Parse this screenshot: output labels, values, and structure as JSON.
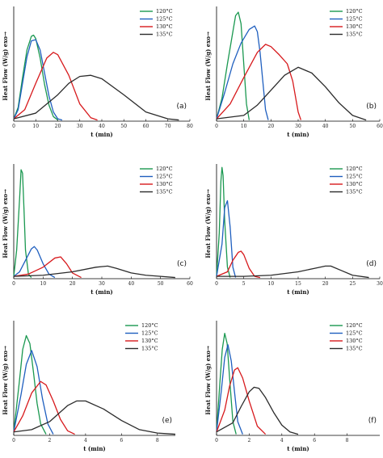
{
  "colors": {
    "120°C": "#1a9850",
    "125°C": "#1f5fbf",
    "130°C": "#d7191c",
    "135°C": "#2b2b2b"
  },
  "chart_data": [
    {
      "type": "line",
      "panel": "(a)",
      "xlabel": "t (min)",
      "ylabel": "Heat Flow (W/g) exo→",
      "xlim": [
        0,
        80
      ],
      "ylim": [
        0,
        1
      ],
      "xticks": [
        0,
        10,
        20,
        30,
        40,
        50,
        60,
        70,
        80
      ],
      "legend": "top-right",
      "series": [
        {
          "name": "120°C",
          "x": [
            0,
            2,
            4,
            6,
            8,
            9,
            10,
            12,
            14,
            16,
            18,
            20
          ],
          "y": [
            0.02,
            0.12,
            0.38,
            0.62,
            0.74,
            0.75,
            0.72,
            0.55,
            0.32,
            0.14,
            0.04,
            0.01
          ]
        },
        {
          "name": "125°C",
          "x": [
            0,
            2,
            4,
            6,
            8,
            10,
            12,
            14,
            16,
            18,
            20,
            22
          ],
          "y": [
            0.02,
            0.1,
            0.33,
            0.56,
            0.7,
            0.71,
            0.62,
            0.42,
            0.22,
            0.08,
            0.02,
            0.01
          ]
        },
        {
          "name": "130°C",
          "x": [
            0,
            5,
            10,
            15,
            18,
            20,
            25,
            30,
            35,
            38
          ],
          "y": [
            0.02,
            0.1,
            0.33,
            0.55,
            0.6,
            0.58,
            0.4,
            0.15,
            0.03,
            0.01
          ]
        },
        {
          "name": "135°C",
          "x": [
            0,
            10,
            20,
            25,
            30,
            35,
            40,
            50,
            60,
            70,
            75
          ],
          "y": [
            0.02,
            0.07,
            0.23,
            0.33,
            0.39,
            0.4,
            0.37,
            0.23,
            0.08,
            0.02,
            0.01
          ]
        }
      ]
    },
    {
      "type": "line",
      "panel": "(b)",
      "xlabel": "t (min)",
      "ylabel": "Heat Flow (W/g) exo→",
      "xlim": [
        0,
        60
      ],
      "ylim": [
        0,
        1
      ],
      "xticks": [
        0,
        10,
        20,
        30,
        40,
        50,
        60
      ],
      "legend": "top-right",
      "series": [
        {
          "name": "120°C",
          "x": [
            0,
            2,
            4,
            6,
            7,
            8,
            9,
            10,
            11,
            12
          ],
          "y": [
            0.02,
            0.2,
            0.5,
            0.78,
            0.92,
            0.95,
            0.85,
            0.5,
            0.15,
            0.01
          ]
        },
        {
          "name": "125°C",
          "x": [
            0,
            3,
            6,
            9,
            12,
            14,
            15,
            16,
            17,
            18,
            19
          ],
          "y": [
            0.02,
            0.25,
            0.5,
            0.68,
            0.8,
            0.83,
            0.78,
            0.6,
            0.35,
            0.1,
            0.01
          ]
        },
        {
          "name": "130°C",
          "x": [
            0,
            5,
            10,
            15,
            18,
            20,
            23,
            26,
            28,
            30,
            31
          ],
          "y": [
            0.02,
            0.15,
            0.38,
            0.6,
            0.67,
            0.65,
            0.58,
            0.5,
            0.35,
            0.08,
            0.01
          ]
        },
        {
          "name": "135°C",
          "x": [
            0,
            10,
            15,
            20,
            25,
            30,
            35,
            40,
            45,
            50,
            55
          ],
          "y": [
            0.02,
            0.05,
            0.14,
            0.27,
            0.4,
            0.47,
            0.42,
            0.3,
            0.16,
            0.05,
            0.01
          ]
        }
      ]
    },
    {
      "type": "line",
      "panel": "(c)",
      "xlabel": "t (min)",
      "ylabel": "Heat Flow (W/g) exo→",
      "xlim": [
        0,
        60
      ],
      "ylim": [
        0,
        1
      ],
      "xticks": [
        0,
        10,
        20,
        30,
        40,
        50,
        60
      ],
      "legend": "top-right",
      "series": [
        {
          "name": "120°C",
          "x": [
            0,
            1,
            2,
            2.5,
            3,
            3.5,
            4,
            5,
            6
          ],
          "y": [
            0.02,
            0.25,
            0.7,
            0.95,
            0.92,
            0.6,
            0.25,
            0.04,
            0.01
          ]
        },
        {
          "name": "125°C",
          "x": [
            0,
            2,
            4,
            6,
            7,
            8,
            10,
            12,
            14
          ],
          "y": [
            0.02,
            0.06,
            0.16,
            0.26,
            0.28,
            0.25,
            0.13,
            0.04,
            0.01
          ]
        },
        {
          "name": "130°C",
          "x": [
            0,
            5,
            10,
            14,
            16,
            18,
            20,
            23
          ],
          "y": [
            0.02,
            0.04,
            0.1,
            0.18,
            0.19,
            0.13,
            0.05,
            0.01
          ]
        },
        {
          "name": "135°C",
          "x": [
            0,
            10,
            20,
            28,
            32,
            35,
            40,
            45,
            50,
            55
          ],
          "y": [
            0.02,
            0.03,
            0.06,
            0.1,
            0.11,
            0.09,
            0.05,
            0.03,
            0.02,
            0.01
          ]
        }
      ]
    },
    {
      "type": "line",
      "panel": "(d)",
      "xlabel": "t (min)",
      "ylabel": "Heat Flow (W/g) exo→",
      "xlim": [
        0,
        30
      ],
      "ylim": [
        0,
        1
      ],
      "xticks": [
        0,
        5,
        10,
        15,
        20,
        25,
        30
      ],
      "legend": "top-right",
      "series": [
        {
          "name": "120°C",
          "x": [
            0,
            0.5,
            0.8,
            1,
            1.2,
            1.5,
            2,
            2.5
          ],
          "y": [
            0.02,
            0.4,
            0.85,
            0.97,
            0.9,
            0.5,
            0.1,
            0.01
          ]
        },
        {
          "name": "125°C",
          "x": [
            0,
            1,
            1.5,
            2,
            2.5,
            3,
            3.5
          ],
          "y": [
            0.02,
            0.3,
            0.62,
            0.68,
            0.45,
            0.1,
            0.01
          ]
        },
        {
          "name": "130°C",
          "x": [
            0,
            2,
            3,
            4,
            4.5,
            5,
            6,
            7,
            8
          ],
          "y": [
            0.02,
            0.06,
            0.16,
            0.23,
            0.24,
            0.21,
            0.09,
            0.02,
            0.01
          ]
        },
        {
          "name": "135°C",
          "x": [
            0,
            5,
            10,
            15,
            18,
            20,
            21,
            23,
            25,
            28
          ],
          "y": [
            0.02,
            0.02,
            0.03,
            0.06,
            0.09,
            0.11,
            0.11,
            0.07,
            0.03,
            0.01
          ]
        }
      ]
    },
    {
      "type": "line",
      "panel": "(e)",
      "xlabel": "t (min)",
      "ylabel": "Heat Flow (W/g) exo→",
      "xlim": [
        0,
        9
      ],
      "ylim": [
        0,
        1
      ],
      "xticks": [
        0,
        2,
        4,
        6,
        8
      ],
      "legend": "top-right",
      "series": [
        {
          "name": "120°C",
          "x": [
            0,
            0.3,
            0.5,
            0.7,
            0.9,
            1.1,
            1.3,
            1.5,
            1.8
          ],
          "y": [
            0.03,
            0.45,
            0.75,
            0.87,
            0.8,
            0.55,
            0.28,
            0.1,
            0.01
          ]
        },
        {
          "name": "125°C",
          "x": [
            0,
            0.4,
            0.7,
            1,
            1.3,
            1.6,
            1.9,
            2.2
          ],
          "y": [
            0.03,
            0.35,
            0.62,
            0.74,
            0.6,
            0.32,
            0.1,
            0.01
          ]
        },
        {
          "name": "130°C",
          "x": [
            0,
            0.5,
            1,
            1.5,
            1.8,
            2.2,
            2.6,
            3,
            3.4
          ],
          "y": [
            0.03,
            0.17,
            0.37,
            0.47,
            0.44,
            0.3,
            0.14,
            0.04,
            0.01
          ]
        },
        {
          "name": "135°C",
          "x": [
            0,
            1,
            2,
            3,
            3.5,
            4,
            5,
            6,
            7,
            8,
            9
          ],
          "y": [
            0.03,
            0.05,
            0.12,
            0.26,
            0.3,
            0.3,
            0.23,
            0.13,
            0.05,
            0.02,
            0.01
          ]
        }
      ]
    },
    {
      "type": "line",
      "panel": "(f)",
      "xlabel": "t (min)",
      "ylabel": "Heat Flow (W/g) exo→",
      "xlim": [
        0,
        10
      ],
      "ylim": [
        0,
        1
      ],
      "xticks": [
        0,
        2,
        4,
        6,
        8
      ],
      "legend": "top-right",
      "series": [
        {
          "name": "120°C",
          "x": [
            0,
            0.2,
            0.35,
            0.5,
            0.65,
            0.8,
            1,
            1.2
          ],
          "y": [
            0.03,
            0.45,
            0.75,
            0.89,
            0.8,
            0.5,
            0.12,
            0.01
          ]
        },
        {
          "name": "125°C",
          "x": [
            0,
            0.3,
            0.5,
            0.7,
            0.9,
            1.1,
            1.3,
            1.6
          ],
          "y": [
            0.03,
            0.4,
            0.68,
            0.79,
            0.65,
            0.38,
            0.12,
            0.01
          ]
        },
        {
          "name": "130°C",
          "x": [
            0,
            0.5,
            0.8,
            1.1,
            1.3,
            1.6,
            2,
            2.5,
            3
          ],
          "y": [
            0.03,
            0.22,
            0.43,
            0.57,
            0.59,
            0.5,
            0.3,
            0.08,
            0.01
          ]
        },
        {
          "name": "135°C",
          "x": [
            0,
            1,
            1.5,
            2,
            2.3,
            2.6,
            3,
            3.5,
            4,
            4.5,
            5
          ],
          "y": [
            0.03,
            0.11,
            0.25,
            0.38,
            0.42,
            0.41,
            0.33,
            0.2,
            0.09,
            0.03,
            0.01
          ]
        }
      ]
    }
  ]
}
